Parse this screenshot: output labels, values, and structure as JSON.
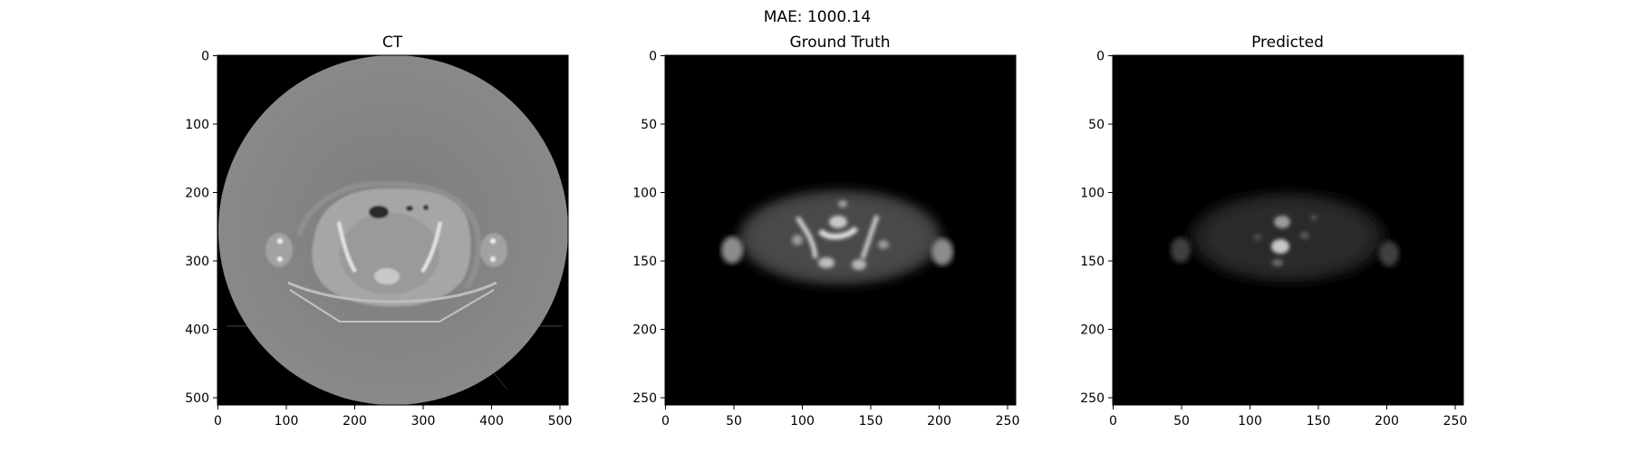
{
  "figure": {
    "suptitle": "MAE: 1000.14"
  },
  "panels": [
    {
      "id": "ct",
      "title": "CT",
      "x_ticks": [
        "0",
        "100",
        "200",
        "300",
        "400",
        "500"
      ],
      "y_ticks": [
        "0",
        "100",
        "200",
        "300",
        "400",
        "500"
      ],
      "extent": [
        512,
        512
      ],
      "x_tick_values": [
        0,
        100,
        200,
        300,
        400,
        500
      ],
      "y_tick_values": [
        0,
        100,
        200,
        300,
        400,
        500
      ],
      "image": "grayscale axial CT slice of pelvis within circular field of view"
    },
    {
      "id": "ground-truth",
      "title": "Ground Truth",
      "x_ticks": [
        "0",
        "50",
        "100",
        "150",
        "200",
        "250"
      ],
      "y_ticks": [
        "0",
        "50",
        "100",
        "150",
        "200",
        "250"
      ],
      "extent": [
        256,
        256
      ],
      "x_tick_values": [
        0,
        50,
        100,
        150,
        200,
        250
      ],
      "y_tick_values": [
        0,
        50,
        100,
        150,
        200,
        250
      ],
      "image": "PET ground truth slice, bright blotchy uptake in pelvis"
    },
    {
      "id": "predicted",
      "title": "Predicted",
      "x_ticks": [
        "0",
        "50",
        "100",
        "150",
        "200",
        "250"
      ],
      "y_ticks": [
        "0",
        "50",
        "100",
        "150",
        "200",
        "250"
      ],
      "extent": [
        256,
        256
      ],
      "x_tick_values": [
        0,
        50,
        100,
        150,
        200,
        250
      ],
      "y_tick_values": [
        0,
        50,
        100,
        150,
        200,
        250
      ],
      "image": "predicted PET slice, dimmer with central bright spots"
    }
  ],
  "colors": {
    "background": "#000000",
    "axis": "#000000"
  }
}
